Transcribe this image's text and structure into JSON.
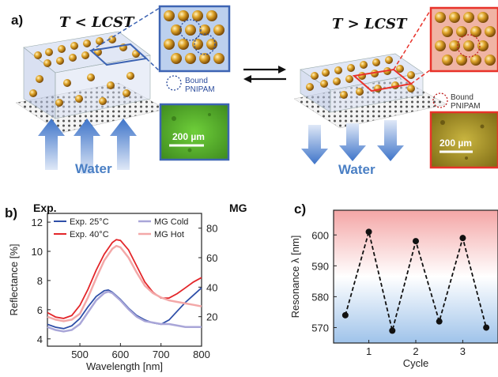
{
  "panel_a": {
    "label": "a)",
    "left": {
      "temp_label": "T < LCST",
      "water_label": "Water",
      "legend_label": "Bound\nPNIPAM",
      "scalebar": "200 µm",
      "box_color": "#3d64b3"
    },
    "right": {
      "temp_label": "T > LCST",
      "water_label": "Water",
      "legend_label": "Bound\nPNIPAM",
      "scalebar": "200 µm",
      "box_color": "#e8322a"
    }
  },
  "panel_b": {
    "label": "b)",
    "left_axis_title": "Exp.",
    "right_axis_title": "MG",
    "xlabel": "Wavelength [nm]",
    "ylabel": "Reflectance [%]",
    "legend": [
      "Exp. 25°C",
      "Exp. 40°C",
      "MG Cold",
      "MG Hot"
    ]
  },
  "panel_c": {
    "label": "c)",
    "xlabel": "Cycle",
    "ylabel": "Resonance λ [nm]"
  },
  "colors": {
    "blue": "#2f4fa8",
    "red": "#e3262a",
    "light_blue": "#a9a6d8",
    "light_red": "#f3a8a8"
  },
  "chart_data": [
    {
      "type": "line",
      "xlabel": "Wavelength [nm]",
      "ylabel": "Reflectance [%]",
      "y2label": "MG",
      "xlim": [
        420,
        800
      ],
      "ylim": [
        3.5,
        12.6
      ],
      "y2lim": [
        0,
        90
      ],
      "xticks": [
        500,
        600,
        700,
        800
      ],
      "yticks": [
        4,
        6,
        8,
        10,
        12
      ],
      "y2ticks": [
        20,
        40,
        60,
        80
      ],
      "series": [
        {
          "name": "Exp. 25°C",
          "axis": "left",
          "color": "#2f4fa8",
          "x": [
            420,
            440,
            460,
            480,
            500,
            520,
            540,
            560,
            570,
            580,
            600,
            620,
            640,
            660,
            680,
            700,
            720,
            740,
            760,
            780,
            800
          ],
          "y": [
            5.0,
            4.8,
            4.7,
            4.9,
            5.4,
            6.2,
            6.9,
            7.3,
            7.35,
            7.2,
            6.7,
            6.1,
            5.6,
            5.3,
            5.1,
            5.0,
            5.3,
            5.9,
            6.5,
            7.0,
            7.5
          ]
        },
        {
          "name": "Exp. 40°C",
          "axis": "left",
          "color": "#e3262a",
          "x": [
            420,
            440,
            460,
            480,
            500,
            520,
            540,
            560,
            580,
            590,
            600,
            620,
            640,
            660,
            680,
            700,
            720,
            740,
            760,
            780,
            800
          ],
          "y": [
            5.8,
            5.5,
            5.4,
            5.6,
            6.3,
            7.4,
            8.7,
            9.8,
            10.6,
            10.8,
            10.75,
            10.1,
            9.0,
            7.9,
            7.2,
            6.8,
            6.8,
            7.1,
            7.5,
            7.9,
            8.2
          ]
        },
        {
          "name": "MG Cold",
          "axis": "right",
          "color": "#a9a6d8",
          "x": [
            420,
            440,
            460,
            480,
            500,
            520,
            540,
            560,
            570,
            580,
            600,
            620,
            640,
            660,
            680,
            700,
            720,
            740,
            760,
            780,
            800
          ],
          "y": [
            13,
            11,
            10,
            11,
            15,
            23,
            31,
            36,
            37,
            36,
            31,
            25,
            20,
            17,
            16,
            15,
            15,
            14,
            13,
            13,
            13
          ]
        },
        {
          "name": "MG Hot",
          "axis": "right",
          "color": "#f3a8a8",
          "x": [
            420,
            440,
            460,
            480,
            500,
            520,
            540,
            560,
            580,
            590,
            600,
            620,
            640,
            660,
            680,
            700,
            720,
            740,
            760,
            780,
            800
          ],
          "y": [
            20,
            18,
            17,
            18,
            22,
            33,
            46,
            58,
            66,
            68,
            67,
            60,
            50,
            41,
            36,
            33,
            31,
            30,
            29,
            28,
            27
          ]
        }
      ]
    },
    {
      "type": "line",
      "xlabel": "Cycle",
      "ylabel": "Resonance λ [nm]",
      "xlim": [
        0.25,
        3.75
      ],
      "ylim": [
        565,
        608
      ],
      "xticks": [
        1,
        2,
        3
      ],
      "yticks": [
        570,
        580,
        590,
        600
      ],
      "series": [
        {
          "x": [
            0.5,
            1,
            1.5,
            2,
            2.5,
            3,
            3.5
          ],
          "y": [
            574,
            601,
            569,
            598,
            572,
            599,
            570
          ]
        }
      ]
    }
  ]
}
